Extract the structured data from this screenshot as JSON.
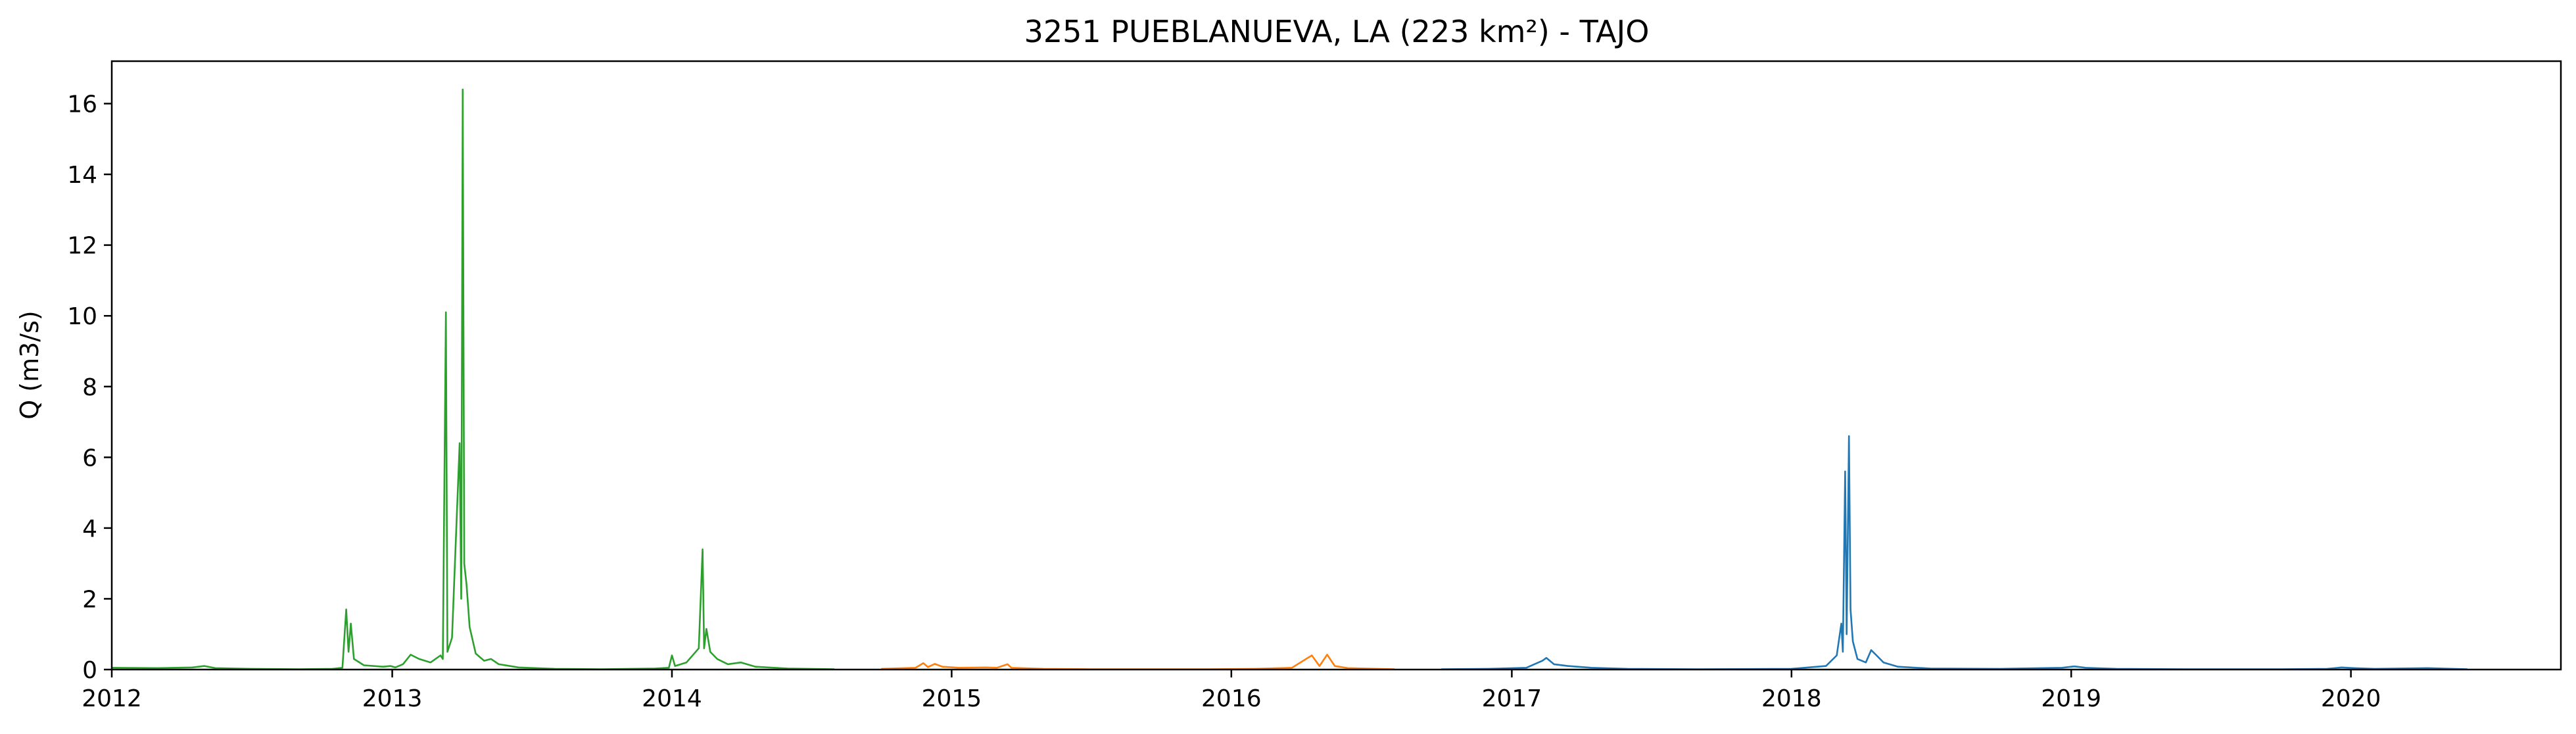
{
  "chart_data": {
    "type": "line",
    "title": "3251 PUEBLANUEVA, LA (223 km²) - TAJO",
    "xlabel": "",
    "ylabel": "Q (m3/s)",
    "xlim": [
      "2012-01-01",
      "2020-10-01"
    ],
    "ylim": [
      0,
      17.2
    ],
    "x_ticks": [
      "2012",
      "2013",
      "2014",
      "2015",
      "2016",
      "2017",
      "2018",
      "2019",
      "2020"
    ],
    "y_ticks": [
      0,
      2,
      4,
      6,
      8,
      10,
      12,
      14,
      16
    ],
    "grid": false,
    "legend": "none",
    "series": [
      {
        "color": "#2ca02c",
        "points": [
          [
            "2012-01-01",
            0.05
          ],
          [
            "2012-03-01",
            0.04
          ],
          [
            "2012-04-15",
            0.06
          ],
          [
            "2012-05-01",
            0.1
          ],
          [
            "2012-05-15",
            0.04
          ],
          [
            "2012-07-01",
            0.02
          ],
          [
            "2012-09-01",
            0.01
          ],
          [
            "2012-10-15",
            0.02
          ],
          [
            "2012-10-28",
            0.05
          ],
          [
            "2012-11-02",
            1.7
          ],
          [
            "2012-11-05",
            0.5
          ],
          [
            "2012-11-08",
            1.3
          ],
          [
            "2012-11-12",
            0.3
          ],
          [
            "2012-11-25",
            0.12
          ],
          [
            "2012-12-20",
            0.08
          ],
          [
            "2012-12-30",
            0.1
          ],
          [
            "2013-01-05",
            0.06
          ],
          [
            "2013-01-15",
            0.15
          ],
          [
            "2013-01-25",
            0.42
          ],
          [
            "2013-02-05",
            0.3
          ],
          [
            "2013-02-20",
            0.2
          ],
          [
            "2013-03-05",
            0.4
          ],
          [
            "2013-03-08",
            0.3
          ],
          [
            "2013-03-12",
            10.1
          ],
          [
            "2013-03-14",
            0.5
          ],
          [
            "2013-03-20",
            0.9
          ],
          [
            "2013-03-30",
            6.4
          ],
          [
            "2013-04-01",
            2.0
          ],
          [
            "2013-04-03",
            16.4
          ],
          [
            "2013-04-05",
            3.0
          ],
          [
            "2013-04-08",
            2.4
          ],
          [
            "2013-04-12",
            1.2
          ],
          [
            "2013-04-20",
            0.45
          ],
          [
            "2013-05-01",
            0.25
          ],
          [
            "2013-05-10",
            0.3
          ],
          [
            "2013-05-20",
            0.15
          ],
          [
            "2013-06-15",
            0.06
          ],
          [
            "2013-08-01",
            0.02
          ],
          [
            "2013-10-01",
            0.01
          ],
          [
            "2013-12-10",
            0.03
          ],
          [
            "2013-12-28",
            0.05
          ],
          [
            "2014-01-01",
            0.4
          ],
          [
            "2014-01-05",
            0.1
          ],
          [
            "2014-01-20",
            0.2
          ],
          [
            "2014-02-05",
            0.6
          ],
          [
            "2014-02-10",
            3.4
          ],
          [
            "2014-02-12",
            0.6
          ],
          [
            "2014-02-15",
            1.15
          ],
          [
            "2014-02-20",
            0.5
          ],
          [
            "2014-03-01",
            0.3
          ],
          [
            "2014-03-15",
            0.15
          ],
          [
            "2014-04-01",
            0.2
          ],
          [
            "2014-04-20",
            0.08
          ],
          [
            "2014-06-01",
            0.03
          ],
          [
            "2014-08-01",
            0.01
          ]
        ]
      },
      {
        "color": "#ff7f0e",
        "points": [
          [
            "2014-10-01",
            0.02
          ],
          [
            "2014-11-15",
            0.05
          ],
          [
            "2014-11-25",
            0.18
          ],
          [
            "2014-12-01",
            0.07
          ],
          [
            "2014-12-10",
            0.16
          ],
          [
            "2014-12-20",
            0.08
          ],
          [
            "2015-01-10",
            0.05
          ],
          [
            "2015-02-15",
            0.06
          ],
          [
            "2015-03-01",
            0.05
          ],
          [
            "2015-03-15",
            0.15
          ],
          [
            "2015-03-20",
            0.05
          ],
          [
            "2015-05-01",
            0.02
          ],
          [
            "2015-07-01",
            0.01
          ],
          [
            "2015-12-01",
            0.01
          ],
          [
            "2016-02-01",
            0.02
          ],
          [
            "2016-03-20",
            0.05
          ],
          [
            "2016-04-15",
            0.4
          ],
          [
            "2016-04-25",
            0.1
          ],
          [
            "2016-05-05",
            0.42
          ],
          [
            "2016-05-15",
            0.1
          ],
          [
            "2016-06-01",
            0.04
          ],
          [
            "2016-08-01",
            0.01
          ]
        ]
      },
      {
        "color": "#1f77b4",
        "points": [
          [
            "2016-10-01",
            0.01
          ],
          [
            "2016-12-01",
            0.02
          ],
          [
            "2017-01-20",
            0.05
          ],
          [
            "2017-02-10",
            0.25
          ],
          [
            "2017-02-15",
            0.33
          ],
          [
            "2017-02-25",
            0.15
          ],
          [
            "2017-03-15",
            0.1
          ],
          [
            "2017-04-15",
            0.05
          ],
          [
            "2017-06-01",
            0.02
          ],
          [
            "2017-09-01",
            0.01
          ],
          [
            "2018-01-01",
            0.02
          ],
          [
            "2018-02-15",
            0.1
          ],
          [
            "2018-03-01",
            0.4
          ],
          [
            "2018-03-07",
            1.3
          ],
          [
            "2018-03-09",
            0.5
          ],
          [
            "2018-03-12",
            5.6
          ],
          [
            "2018-03-14",
            1.0
          ],
          [
            "2018-03-17",
            6.6
          ],
          [
            "2018-03-19",
            1.7
          ],
          [
            "2018-03-22",
            0.8
          ],
          [
            "2018-03-28",
            0.3
          ],
          [
            "2018-04-08",
            0.2
          ],
          [
            "2018-04-15",
            0.55
          ],
          [
            "2018-04-22",
            0.4
          ],
          [
            "2018-05-01",
            0.2
          ],
          [
            "2018-05-20",
            0.08
          ],
          [
            "2018-07-01",
            0.03
          ],
          [
            "2018-10-01",
            0.02
          ],
          [
            "2018-12-20",
            0.05
          ],
          [
            "2019-01-05",
            0.09
          ],
          [
            "2019-01-20",
            0.05
          ],
          [
            "2019-03-01",
            0.02
          ],
          [
            "2019-06-01",
            0.01
          ],
          [
            "2019-10-01",
            0.01
          ],
          [
            "2019-12-01",
            0.02
          ],
          [
            "2019-12-20",
            0.06
          ],
          [
            "2020-01-05",
            0.04
          ],
          [
            "2020-02-01",
            0.02
          ],
          [
            "2020-04-10",
            0.04
          ],
          [
            "2020-06-01",
            0.01
          ]
        ]
      }
    ]
  }
}
